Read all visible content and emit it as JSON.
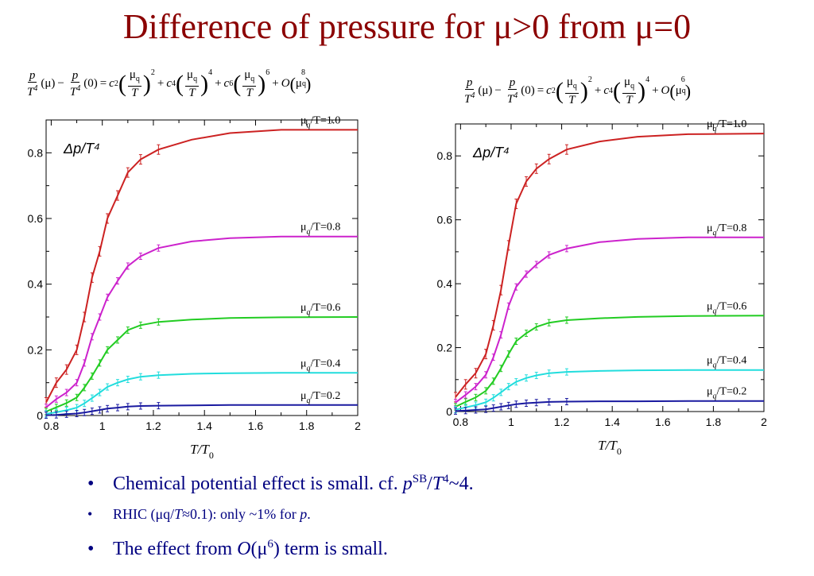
{
  "slide": {
    "title": "Difference of pressure for μ>0 from μ=0"
  },
  "formulas": [
    {
      "lhs_p": "p",
      "lhs_T": "T",
      "four": "4",
      "mu": "(μ)",
      "minus": "−",
      "zero": "(0)",
      "eq": "=",
      "terms": [
        {
          "coef": "c",
          "sub": "2",
          "pow": "2"
        },
        {
          "coef": "c",
          "sub": "4",
          "pow": "4"
        },
        {
          "coef": "c",
          "sub": "6",
          "pow": "6"
        }
      ],
      "mu_sym": "μ",
      "mu_sub": "q",
      "T": "T",
      "plus": "+",
      "O": "O",
      "O_pow": "8"
    },
    {
      "lhs_p": "p",
      "lhs_T": "T",
      "four": "4",
      "mu": "(μ)",
      "minus": "−",
      "zero": "(0)",
      "eq": "=",
      "terms": [
        {
          "coef": "c",
          "sub": "2",
          "pow": "2"
        },
        {
          "coef": "c",
          "sub": "4",
          "pow": "4"
        }
      ],
      "mu_sym": "μ",
      "mu_sub": "q",
      "T": "T",
      "plus": "+",
      "O": "O",
      "O_pow": "6"
    }
  ],
  "chart_data": [
    {
      "type": "line",
      "plot_label": "Δp/T⁴",
      "xlabel_main": "T/T",
      "xlabel_sub": "0",
      "xlim": [
        0.78,
        2.0
      ],
      "ylim": [
        0,
        0.9
      ],
      "xticks": [
        "0.8",
        "1",
        "1.2",
        "1.4",
        "1.6",
        "1.8",
        "2"
      ],
      "xtick_vals": [
        0.8,
        1.0,
        1.2,
        1.4,
        1.6,
        1.8,
        2.0
      ],
      "yticks": [
        "0",
        "0.2",
        "0.4",
        "0.6",
        "0.8"
      ],
      "ytick_vals": [
        0,
        0.2,
        0.4,
        0.6,
        0.8
      ],
      "x": [
        0.78,
        0.82,
        0.86,
        0.9,
        0.93,
        0.96,
        0.99,
        1.02,
        1.06,
        1.1,
        1.15,
        1.22,
        1.35,
        1.5,
        1.7,
        2.0
      ],
      "series": [
        {
          "label_mu": "μ",
          "label_sub": "q",
          "label_rest": "/T=1.0",
          "color": "#cc2222",
          "values": [
            0.04,
            0.1,
            0.14,
            0.2,
            0.3,
            0.42,
            0.5,
            0.6,
            0.67,
            0.74,
            0.78,
            0.81,
            0.84,
            0.86,
            0.87,
            0.87
          ]
        },
        {
          "label_mu": "μ",
          "label_sub": "q",
          "label_rest": "/T=0.8",
          "color": "#cc22cc",
          "values": [
            0.025,
            0.05,
            0.07,
            0.1,
            0.16,
            0.24,
            0.3,
            0.36,
            0.41,
            0.455,
            0.485,
            0.51,
            0.53,
            0.54,
            0.545,
            0.545
          ]
        },
        {
          "label_mu": "μ",
          "label_sub": "q",
          "label_rest": "/T=0.6",
          "color": "#22cc22",
          "values": [
            0.012,
            0.025,
            0.038,
            0.055,
            0.085,
            0.12,
            0.16,
            0.2,
            0.23,
            0.26,
            0.275,
            0.285,
            0.292,
            0.297,
            0.299,
            0.3
          ]
        },
        {
          "label_mu": "μ",
          "label_sub": "q",
          "label_rest": "/T=0.4",
          "color": "#22dddd",
          "values": [
            0.005,
            0.01,
            0.016,
            0.024,
            0.037,
            0.053,
            0.07,
            0.087,
            0.1,
            0.11,
            0.118,
            0.123,
            0.127,
            0.129,
            0.13,
            0.13
          ]
        },
        {
          "label_mu": "μ",
          "label_sub": "q",
          "label_rest": "/T=0.2",
          "color": "#1a1aa0",
          "values": [
            0.001,
            0.002,
            0.004,
            0.006,
            0.009,
            0.013,
            0.017,
            0.021,
            0.024,
            0.027,
            0.029,
            0.03,
            0.031,
            0.032,
            0.032,
            0.032
          ]
        }
      ]
    },
    {
      "type": "line",
      "plot_label": "Δp/T⁴",
      "xlabel_main": "T/T",
      "xlabel_sub": "0",
      "xlim": [
        0.78,
        2.0
      ],
      "ylim": [
        0,
        0.9
      ],
      "xticks": [
        "0.8",
        "1",
        "1.2",
        "1.4",
        "1.6",
        "1.8",
        "2"
      ],
      "xtick_vals": [
        0.8,
        1.0,
        1.2,
        1.4,
        1.6,
        1.8,
        2.0
      ],
      "yticks": [
        "0",
        "0.2",
        "0.4",
        "0.6",
        "0.8"
      ],
      "ytick_vals": [
        0,
        0.2,
        0.4,
        0.6,
        0.8
      ],
      "x": [
        0.78,
        0.82,
        0.86,
        0.9,
        0.93,
        0.96,
        0.99,
        1.02,
        1.06,
        1.1,
        1.15,
        1.22,
        1.35,
        1.5,
        1.7,
        2.0
      ],
      "series": [
        {
          "label_mu": "μ",
          "label_sub": "q",
          "label_rest": "/T=1.0",
          "color": "#cc2222",
          "values": [
            0.045,
            0.085,
            0.12,
            0.18,
            0.27,
            0.38,
            0.52,
            0.65,
            0.72,
            0.76,
            0.79,
            0.82,
            0.845,
            0.86,
            0.868,
            0.87
          ]
        },
        {
          "label_mu": "μ",
          "label_sub": "q",
          "label_rest": "/T=0.8",
          "color": "#cc22cc",
          "values": [
            0.028,
            0.052,
            0.078,
            0.115,
            0.17,
            0.24,
            0.33,
            0.39,
            0.43,
            0.46,
            0.49,
            0.51,
            0.53,
            0.54,
            0.545,
            0.545
          ]
        },
        {
          "label_mu": "μ",
          "label_sub": "q",
          "label_rest": "/T=0.6",
          "color": "#22cc22",
          "values": [
            0.015,
            0.03,
            0.044,
            0.065,
            0.095,
            0.135,
            0.18,
            0.22,
            0.245,
            0.265,
            0.278,
            0.286,
            0.292,
            0.296,
            0.299,
            0.3
          ]
        },
        {
          "label_mu": "μ",
          "label_sub": "q",
          "label_rest": "/T=0.4",
          "color": "#22dddd",
          "values": [
            0.006,
            0.013,
            0.02,
            0.029,
            0.043,
            0.06,
            0.078,
            0.093,
            0.105,
            0.113,
            0.12,
            0.124,
            0.127,
            0.129,
            0.13,
            0.13
          ]
        },
        {
          "label_mu": "μ",
          "label_sub": "q",
          "label_rest": "/T=0.2",
          "color": "#1a1aa0",
          "values": [
            0.0015,
            0.003,
            0.005,
            0.007,
            0.011,
            0.015,
            0.019,
            0.023,
            0.026,
            0.028,
            0.03,
            0.031,
            0.032,
            0.032,
            0.033,
            0.033
          ]
        }
      ]
    }
  ],
  "bullets": [
    {
      "pre": "Chemical potential effect is small. cf. ",
      "p": "p",
      "sb": "SB",
      "slash": "/",
      "T": "T",
      "four": "4",
      "post": "~4."
    },
    {
      "pre": "RHIC (μq/",
      "T": "T",
      "post": "≈0.1): only ~1% for ",
      "p": "p",
      "end": "."
    },
    {
      "pre": "The effect from ",
      "O": "O",
      "open": "(μ",
      "six": "6",
      "post": ") term is small."
    }
  ],
  "bullet_symbol": "•"
}
